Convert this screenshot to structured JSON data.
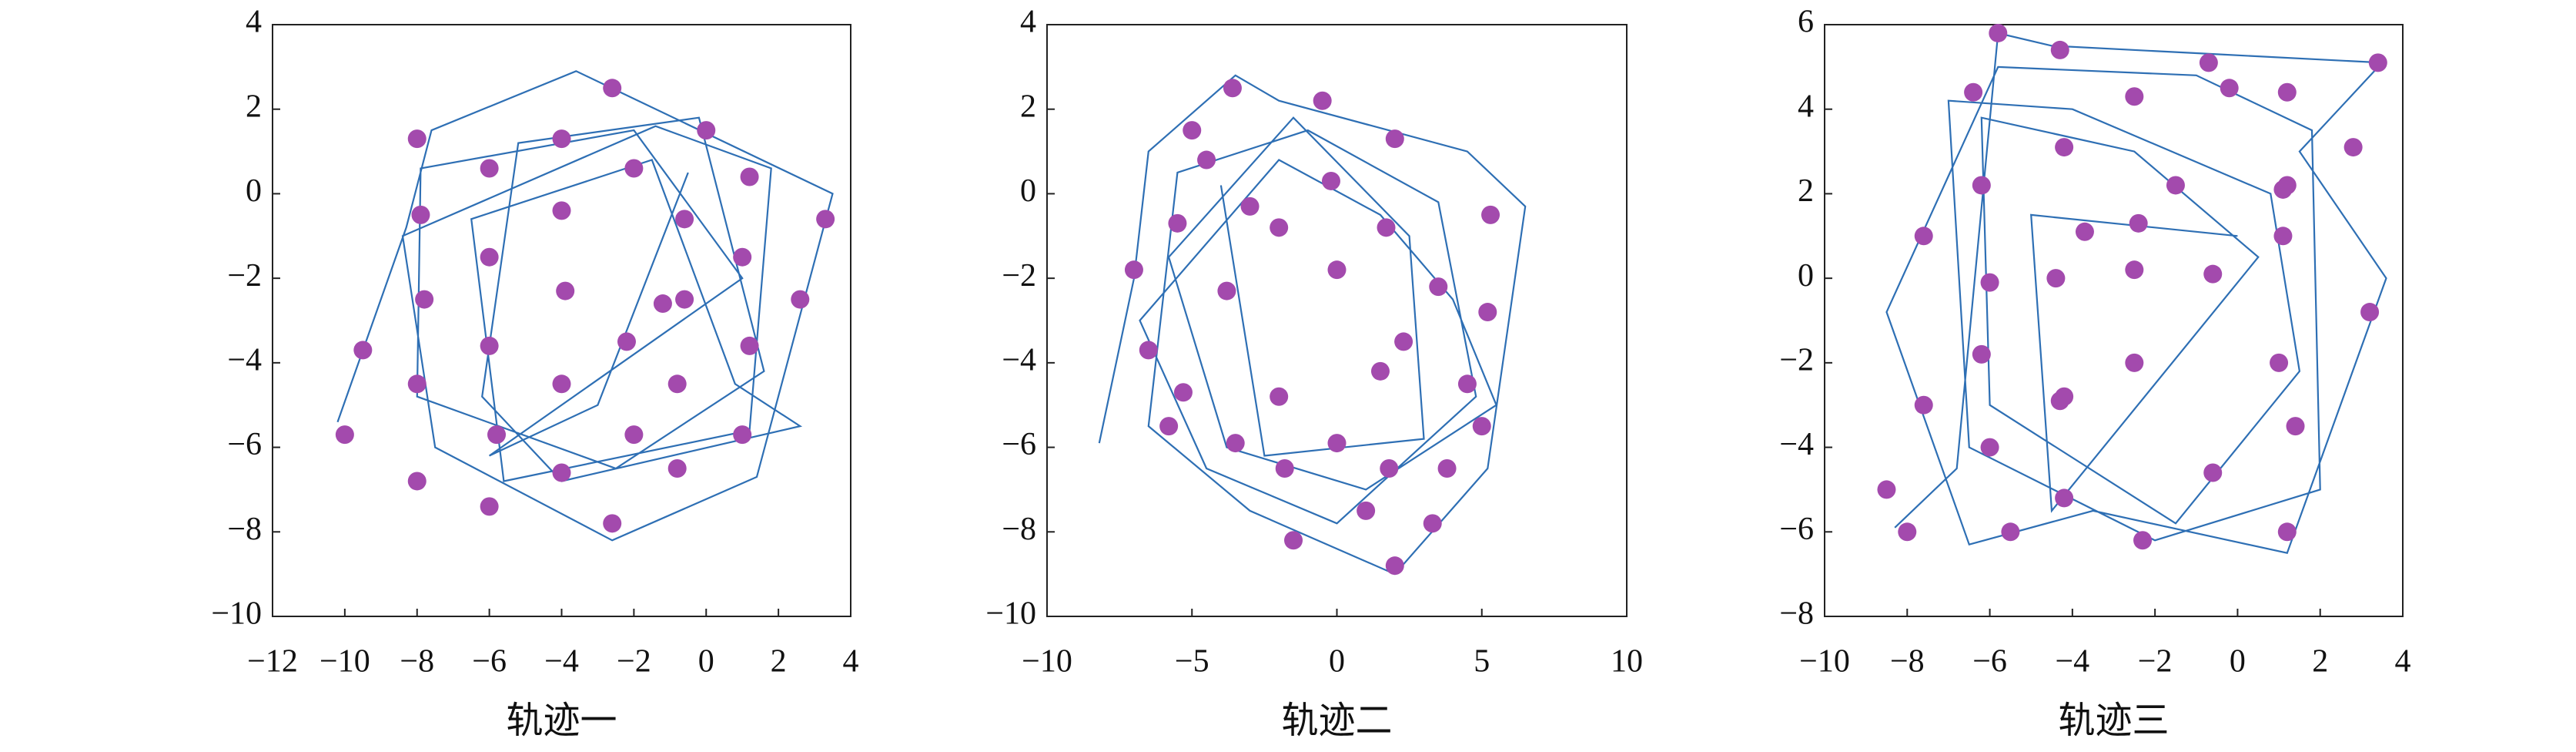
{
  "chart_data": [
    {
      "type": "trajectory",
      "xlabel": "轨迹一",
      "xlim": [
        -12,
        4
      ],
      "ylim": [
        -10,
        4
      ],
      "xticks": [
        {
          "value": -12,
          "label": "−12"
        },
        {
          "value": -10,
          "label": "−10"
        },
        {
          "value": -8,
          "label": "−8"
        },
        {
          "value": -6,
          "label": "−6"
        },
        {
          "value": -4,
          "label": "−4"
        },
        {
          "value": -2,
          "label": "−2"
        },
        0,
        2,
        4
      ],
      "yticks": [
        {
          "value": -10,
          "label": "−10"
        },
        {
          "value": -8,
          "label": "−8"
        },
        {
          "value": -6,
          "label": "−6"
        },
        {
          "value": -4,
          "label": "−4"
        },
        {
          "value": -2,
          "label": "−2"
        },
        0,
        2,
        4
      ],
      "line": {
        "color": "#2e6fb4",
        "x": [
          -10.2,
          -8.3,
          -7.6,
          -3.6,
          3.5,
          1.4,
          -2.6,
          -7.5,
          -8.4,
          -1.4,
          1.8,
          1.2,
          -5.6,
          -6.5,
          -1.5,
          0.8,
          2.6,
          -4.0,
          -6.2,
          -5.2,
          -0.2,
          1.6,
          -2.5,
          -8.0,
          -7.9,
          -2.0,
          1.0,
          -6.0,
          -3.0,
          -0.5
        ],
        "y": [
          -5.4,
          -0.8,
          1.5,
          2.9,
          0.0,
          -6.7,
          -8.2,
          -6.0,
          -1.0,
          1.6,
          0.6,
          -5.6,
          -6.8,
          -0.6,
          0.8,
          -4.5,
          -5.5,
          -6.8,
          -4.8,
          1.2,
          1.8,
          -4.2,
          -6.5,
          -4.8,
          0.6,
          1.5,
          -2.0,
          -6.2,
          -5.0,
          0.5
        ]
      },
      "points": {
        "color": "#a34aad",
        "x": [
          -2,
          -4,
          -6,
          -7.9,
          -6,
          -4,
          -0.6,
          -0.8,
          -2,
          -5.8,
          -9.5,
          -10,
          -8,
          -6,
          -2.6,
          -0.8,
          1,
          1.2,
          2.6,
          3.3,
          1.2,
          0,
          -2.6,
          -8,
          -7.8,
          -6,
          -4,
          -3.9,
          -2.2,
          -0.6,
          -1.2,
          1,
          -8,
          -4
        ],
        "y": [
          0.6,
          1.3,
          0.6,
          -0.5,
          -1.5,
          -0.4,
          -0.6,
          -4.5,
          -5.7,
          -5.7,
          -3.7,
          -5.7,
          -6.8,
          -7.4,
          -7.8,
          -6.5,
          -5.7,
          -3.6,
          -2.5,
          -0.6,
          0.4,
          1.5,
          2.5,
          1.3,
          -2.5,
          -3.6,
          -4.5,
          -2.3,
          -3.5,
          -2.5,
          -2.6,
          -1.5,
          -4.5,
          -6.6
        ]
      }
    },
    {
      "type": "trajectory",
      "xlabel": "轨迹二",
      "xlim": [
        -10,
        10
      ],
      "ylim": [
        -10,
        4
      ],
      "xticks": [
        {
          "value": -10,
          "label": "−10"
        },
        {
          "value": -5,
          "label": "−5"
        },
        0,
        5,
        10
      ],
      "yticks": [
        {
          "value": -10,
          "label": "−10"
        },
        {
          "value": -8,
          "label": "−8"
        },
        {
          "value": -6,
          "label": "−6"
        },
        {
          "value": -4,
          "label": "−4"
        },
        {
          "value": -2,
          "label": "−2"
        },
        0,
        2,
        4
      ],
      "line": {
        "color": "#2e6fb4",
        "x": [
          -8.2,
          -7.0,
          -6.5,
          -3.5,
          -2.0,
          4.5,
          6.5,
          5.2,
          2.0,
          -3.0,
          -6.5,
          -5.5,
          -1.0,
          3.5,
          4.8,
          0.0,
          -4.5,
          -6.8,
          -2.0,
          1.5,
          4.0,
          5.5,
          1.0,
          -3.8,
          -5.8,
          -1.5,
          2.5,
          3.0,
          -2.5,
          -4.0
        ],
        "y": [
          -5.9,
          -2.0,
          1.0,
          2.8,
          2.2,
          1.0,
          -0.3,
          -6.5,
          -9.0,
          -7.5,
          -5.5,
          0.5,
          1.5,
          -0.2,
          -4.8,
          -7.8,
          -6.5,
          -3.0,
          0.8,
          -0.5,
          -2.5,
          -5.0,
          -7.0,
          -6.0,
          -1.5,
          1.8,
          -1.0,
          -5.8,
          -6.2,
          0.2
        ]
      },
      "points": {
        "color": "#a34aad",
        "x": [
          -7,
          -6.5,
          -5.8,
          -5.5,
          -5,
          -3.6,
          -3.5,
          -3,
          -2,
          -2,
          -1.8,
          -0.2,
          0,
          0,
          1.7,
          1.8,
          2,
          2,
          3.5,
          3.8,
          4.5,
          5.3,
          5.2,
          2.3,
          1.5,
          -0.5,
          -4.5,
          -5.3,
          -3.8,
          1,
          -1.5,
          3.3,
          5
        ],
        "y": [
          -1.8,
          -3.7,
          -5.5,
          -0.7,
          1.5,
          2.5,
          -5.9,
          -0.3,
          -0.8,
          -4.8,
          -6.5,
          0.3,
          -1.8,
          -5.9,
          -0.8,
          -6.5,
          -8.8,
          1.3,
          -2.2,
          -6.5,
          -4.5,
          -0.5,
          -2.8,
          -3.5,
          -4.2,
          2.2,
          0.8,
          -4.7,
          -2.3,
          -7.5,
          -8.2,
          -7.8,
          -5.5
        ]
      }
    },
    {
      "type": "trajectory",
      "xlabel": "轨迹三",
      "xlim": [
        -10,
        4
      ],
      "ylim": [
        -8,
        6
      ],
      "xticks": [
        {
          "value": -10,
          "label": "−10"
        },
        {
          "value": -8,
          "label": "−8"
        },
        {
          "value": -6,
          "label": "−6"
        },
        {
          "value": -4,
          "label": "−4"
        },
        {
          "value": -2,
          "label": "−2"
        },
        0,
        2,
        4
      ],
      "yticks": [
        {
          "value": -8,
          "label": "−8"
        },
        {
          "value": -6,
          "label": "−6"
        },
        {
          "value": -4,
          "label": "−4"
        },
        {
          "value": -2,
          "label": "−2"
        },
        0,
        2,
        4,
        6
      ],
      "line": {
        "color": "#2e6fb4",
        "x": [
          -8.3,
          -6.8,
          -5.8,
          -4.5,
          -0.5,
          3.5,
          1.5,
          3.6,
          1.2,
          -3.5,
          -6.5,
          -8.5,
          -5.8,
          -1.0,
          1.8,
          2.0,
          -2.0,
          -6.5,
          -7.0,
          -4.0,
          0.8,
          1.5,
          -1.5,
          -6.0,
          -6.2,
          -2.5,
          0.5,
          -4.5,
          -5.0,
          0.0
        ],
        "y": [
          -5.9,
          -4.5,
          5.8,
          5.5,
          5.3,
          5.1,
          3.0,
          0.0,
          -6.5,
          -5.5,
          -6.3,
          -0.8,
          5.0,
          4.8,
          3.5,
          -5.0,
          -6.2,
          -4.0,
          4.2,
          4.0,
          2.0,
          -2.2,
          -5.8,
          -3.0,
          3.8,
          3.0,
          0.5,
          -5.5,
          1.5,
          1.0
        ]
      },
      "points": {
        "color": "#a34aad",
        "x": [
          -5.8,
          -4.3,
          -0.7,
          1.2,
          3.4,
          2.8,
          1.2,
          1.1,
          -0.6,
          -2.5,
          -4.4,
          -6.2,
          -7.6,
          -8.5,
          -6,
          -8,
          -7.6,
          -6.4,
          -5.5,
          -4.2,
          -2.3,
          -0.6,
          1.2,
          1.4,
          3.2,
          -3.7,
          -4.3,
          -6.2,
          -6.0,
          -4.2,
          -2.5,
          -2.4,
          -1.5,
          1.1,
          1.0,
          -4.2,
          -2.5,
          -0.2
        ],
        "y": [
          5.8,
          5.4,
          5.1,
          4.4,
          5.1,
          3.1,
          2.2,
          1.0,
          0.1,
          0.2,
          0.0,
          -1.8,
          -3.0,
          -5.0,
          -4.0,
          -6.0,
          1.0,
          4.4,
          -6.0,
          -5.2,
          -6.2,
          -4.6,
          -6.0,
          -3.5,
          -0.8,
          1.1,
          -2.9,
          2.2,
          -0.1,
          -2.8,
          -2.0,
          1.3,
          2.2,
          2.1,
          -2.0,
          3.1,
          4.3,
          4.5
        ]
      }
    }
  ]
}
